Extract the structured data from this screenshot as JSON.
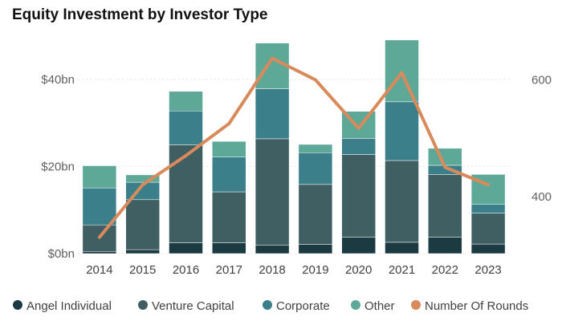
{
  "chart_data": {
    "type": "bar",
    "stacked": true,
    "title": "Equity Investment by Investor Type",
    "categories": [
      "2014",
      "2015",
      "2016",
      "2017",
      "2018",
      "2019",
      "2020",
      "2021",
      "2022",
      "2023"
    ],
    "series": [
      {
        "name": "Angel Individual",
        "color": "#1b3a42",
        "values": [
          0.5,
          0.9,
          2.5,
          2.5,
          1.9,
          2.1,
          3.8,
          2.6,
          3.8,
          2.2
        ]
      },
      {
        "name": "Venture Capital",
        "color": "#3f5f63",
        "values": [
          6.1,
          11.5,
          22.5,
          11.7,
          24.5,
          13.8,
          19.0,
          18.8,
          14.4,
          7.1
        ]
      },
      {
        "name": "Corporate",
        "color": "#3b7f8a",
        "values": [
          8.5,
          4.0,
          7.8,
          8.0,
          11.5,
          7.3,
          3.7,
          13.5,
          2.1,
          2.0
        ]
      },
      {
        "name": "Other",
        "color": "#5ea898",
        "values": [
          5.1,
          1.7,
          4.5,
          3.6,
          10.5,
          1.9,
          6.2,
          14.2,
          3.9,
          6.9
        ]
      }
    ],
    "line_series": {
      "name": "Number Of Rounds",
      "color": "#d98a5b",
      "axis": "right",
      "values": [
        330,
        420,
        470,
        525,
        637,
        600,
        517,
        612,
        450,
        420
      ]
    },
    "y_left": {
      "ticks": [
        0,
        20,
        40
      ],
      "tick_labels": [
        "$0bn",
        "$20bn",
        "$40bn"
      ],
      "range": [
        0,
        50
      ]
    },
    "y_right": {
      "ticks": [
        400,
        600
      ],
      "tick_labels": [
        "400",
        "600"
      ],
      "range": [
        302,
        675
      ]
    },
    "grid": true,
    "legend_position": "bottom"
  }
}
